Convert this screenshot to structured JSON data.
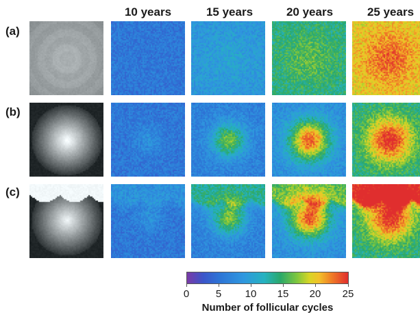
{
  "columns": [
    "10 years",
    "15 years",
    "20 years",
    "25 years"
  ],
  "rows": [
    "(a)",
    "(b)",
    "(c)"
  ],
  "colorbar": {
    "title": "Number of follicular cycles",
    "ticks": [
      "0",
      "5",
      "10",
      "15",
      "20",
      "25"
    ],
    "range": [
      0,
      25
    ]
  },
  "colors": {
    "background": "#ffffff",
    "low": "#2d74d6",
    "mid": "#2aa86a",
    "high": "#e02e2e"
  }
}
